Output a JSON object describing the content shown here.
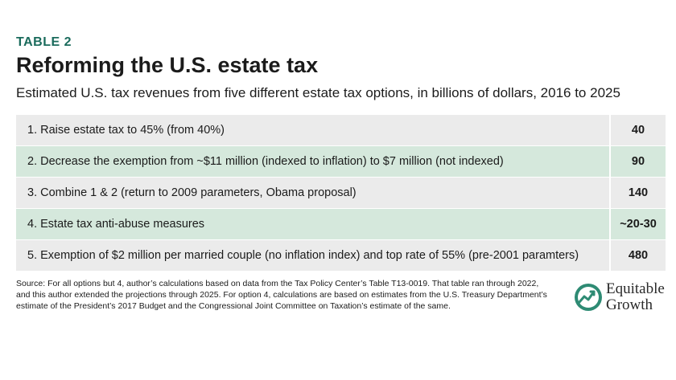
{
  "header": {
    "label": "TABLE 2",
    "title": "Reforming the U.S. estate tax",
    "subtitle": "Estimated U.S. tax revenues from five different estate tax options, in billions of dollars, 2016 to 2025"
  },
  "table": {
    "rows": [
      {
        "desc": "1. Raise estate tax to 45% (from 40%)",
        "value": "40"
      },
      {
        "desc": "2. Decrease the exemption from ~$11 million  (indexed to inflation) to $7 million (not indexed)",
        "value": "90"
      },
      {
        "desc": "3. Combine 1 & 2 (return to 2009 parameters, Obama proposal)",
        "value": "140"
      },
      {
        "desc": "4. Estate tax anti-abuse measures",
        "value": "~20-30"
      },
      {
        "desc": "5. Exemption of $2 million per married couple (no inflation index) and top rate of 55% (pre-2001 paramters)",
        "value": "480"
      }
    ]
  },
  "source": {
    "line1": "Source: For all options but 4, author’s calculations based on data from the Tax Policy Center’s Table T13-0019. That table ran through 2022,",
    "line2": "and this author extended the projections through 2025.  For option 4, calculations are based on estimates from the U.S. Treasury Department’s",
    "line3": "estimate of the President’s 2017 Budget and the Congressional Joint Committee on Taxation’s estimate of the same."
  },
  "logo": {
    "line1": "Equitable",
    "line2": "Growth",
    "icon": "equitable-growth-logo-icon",
    "color": "#2e8b74"
  }
}
